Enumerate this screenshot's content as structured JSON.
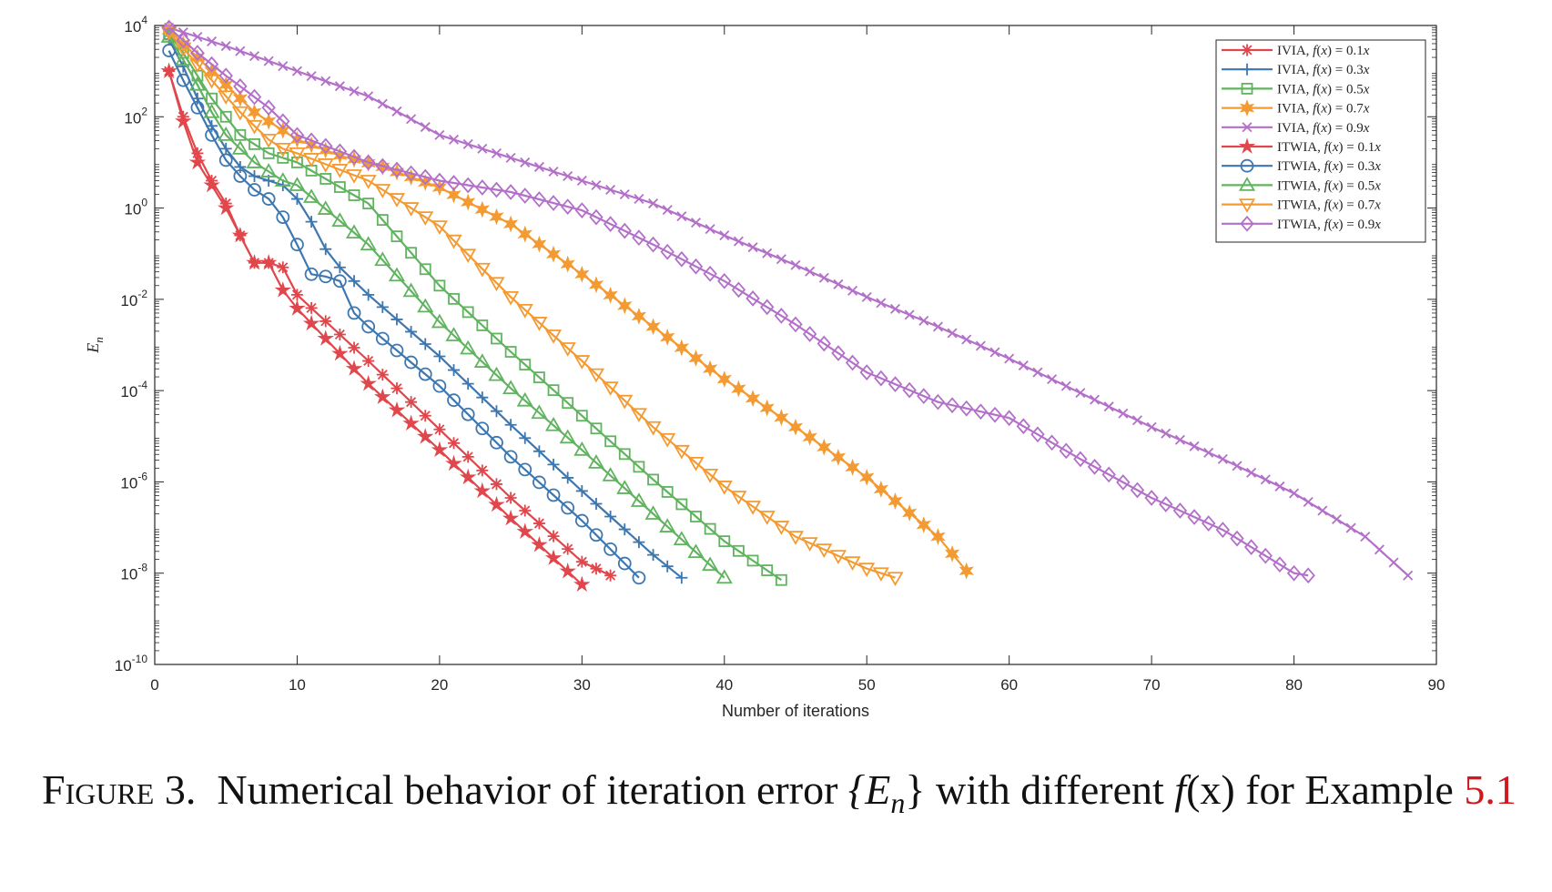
{
  "chart_data": {
    "type": "line",
    "xlabel": "Number of iterations",
    "ylabel": "E_n",
    "xlim": [
      0,
      90
    ],
    "ylim_log10": [
      -10,
      4
    ],
    "yscale": "log",
    "xticks": [
      "0",
      "10",
      "20",
      "30",
      "40",
      "50",
      "60",
      "70",
      "80",
      "90"
    ],
    "yticks": [
      {
        "base": "10",
        "exp": "4",
        "value": 4
      },
      {
        "base": "10",
        "exp": "2",
        "value": 2
      },
      {
        "base": "10",
        "exp": "0",
        "value": 0
      },
      {
        "base": "10",
        "exp": "-2",
        "value": -2
      },
      {
        "base": "10",
        "exp": "-4",
        "value": -4
      },
      {
        "base": "10",
        "exp": "-6",
        "value": -6
      },
      {
        "base": "10",
        "exp": "-8",
        "value": -8
      },
      {
        "base": "10",
        "exp": "-10",
        "value": -10
      }
    ],
    "legend_position": "top-right",
    "series": [
      {
        "name": "IVIA, f(x) = 0.1x",
        "color": "#e0474c",
        "marker": "asterisk",
        "n_end": 32,
        "log10_points": [
          [
            1,
            3.0
          ],
          [
            2,
            2.0
          ],
          [
            3,
            1.2
          ],
          [
            4,
            0.6
          ],
          [
            5,
            0.1
          ],
          [
            6,
            -0.6
          ],
          [
            7,
            -1.2
          ],
          [
            8,
            -1.2
          ],
          [
            9,
            -1.3
          ],
          [
            10,
            -1.9
          ],
          [
            15,
            -3.35
          ],
          [
            20,
            -4.85
          ],
          [
            25,
            -6.35
          ],
          [
            30,
            -7.75
          ],
          [
            32,
            -8.05
          ]
        ]
      },
      {
        "name": "IVIA, f(x) = 0.3x",
        "color": "#3d77b0",
        "marker": "plus",
        "n_end": 37,
        "log10_points": [
          [
            1,
            3.7
          ],
          [
            2,
            3.1
          ],
          [
            3,
            2.4
          ],
          [
            4,
            1.8
          ],
          [
            5,
            1.3
          ],
          [
            6,
            0.9
          ],
          [
            7,
            0.7
          ],
          [
            8,
            0.6
          ],
          [
            9,
            0.5
          ],
          [
            10,
            0.2
          ],
          [
            11,
            -0.3
          ],
          [
            12,
            -0.9
          ],
          [
            13,
            -1.3
          ],
          [
            14,
            -1.6
          ],
          [
            15,
            -1.9
          ],
          [
            20,
            -3.25
          ],
          [
            25,
            -4.75
          ],
          [
            30,
            -6.2
          ],
          [
            35,
            -7.6
          ],
          [
            37,
            -8.1
          ]
        ]
      },
      {
        "name": "IVIA, f(x) = 0.5x",
        "color": "#60b35f",
        "marker": "square",
        "n_end": 44,
        "log10_points": [
          [
            1,
            3.8
          ],
          [
            2,
            3.4
          ],
          [
            3,
            2.9
          ],
          [
            4,
            2.4
          ],
          [
            5,
            2.0
          ],
          [
            6,
            1.6
          ],
          [
            7,
            1.4
          ],
          [
            8,
            1.2
          ],
          [
            9,
            1.1
          ],
          [
            10,
            1.0
          ],
          [
            15,
            0.1
          ],
          [
            20,
            -1.7
          ],
          [
            25,
            -3.15
          ],
          [
            30,
            -4.55
          ],
          [
            35,
            -5.95
          ],
          [
            40,
            -7.3
          ],
          [
            44,
            -8.15
          ]
        ]
      },
      {
        "name": "IVIA, f(x) = 0.7x",
        "color": "#f39b32",
        "marker": "hexagram",
        "n_end": 57,
        "log10_points": [
          [
            1,
            3.9
          ],
          [
            2,
            3.6
          ],
          [
            3,
            3.3
          ],
          [
            4,
            3.0
          ],
          [
            5,
            2.7
          ],
          [
            6,
            2.4
          ],
          [
            7,
            2.1
          ],
          [
            8,
            1.9
          ],
          [
            9,
            1.7
          ],
          [
            10,
            1.5
          ],
          [
            13,
            1.15
          ],
          [
            16,
            0.9
          ],
          [
            20,
            0.45
          ],
          [
            25,
            -0.35
          ],
          [
            30,
            -1.45
          ],
          [
            35,
            -2.6
          ],
          [
            40,
            -3.75
          ],
          [
            45,
            -4.8
          ],
          [
            50,
            -5.9
          ],
          [
            55,
            -7.2
          ],
          [
            57,
            -7.95
          ]
        ]
      },
      {
        "name": "IVIA, f(x) = 0.9x",
        "color": "#b36fc9",
        "marker": "cross",
        "n_end": 88,
        "log10_points": [
          [
            1,
            3.95
          ],
          [
            5,
            3.55
          ],
          [
            10,
            3.0
          ],
          [
            15,
            2.45
          ],
          [
            18,
            1.95
          ],
          [
            20,
            1.6
          ],
          [
            25,
            1.1
          ],
          [
            30,
            0.6
          ],
          [
            35,
            0.1
          ],
          [
            40,
            -0.6
          ],
          [
            45,
            -1.25
          ],
          [
            50,
            -1.95
          ],
          [
            55,
            -2.6
          ],
          [
            60,
            -3.3
          ],
          [
            65,
            -4.05
          ],
          [
            70,
            -4.8
          ],
          [
            75,
            -5.5
          ],
          [
            80,
            -6.25
          ],
          [
            85,
            -7.2
          ],
          [
            88,
            -8.05
          ]
        ]
      },
      {
        "name": "ITWIA, f(x) = 0.1x",
        "color": "#e0474c",
        "marker": "star",
        "n_end": 30,
        "log10_points": [
          [
            1,
            3.0
          ],
          [
            2,
            1.9
          ],
          [
            3,
            1.0
          ],
          [
            4,
            0.5
          ],
          [
            5,
            0.0
          ],
          [
            6,
            -0.6
          ],
          [
            7,
            -1.2
          ],
          [
            8,
            -1.2
          ],
          [
            9,
            -1.8
          ],
          [
            10,
            -2.2
          ],
          [
            15,
            -3.85
          ],
          [
            20,
            -5.3
          ],
          [
            25,
            -6.8
          ],
          [
            30,
            -8.25
          ]
        ]
      },
      {
        "name": "ITWIA, f(x) = 0.3x",
        "color": "#3d77b0",
        "marker": "circle",
        "n_end": 34,
        "log10_points": [
          [
            1,
            3.45
          ],
          [
            2,
            2.8
          ],
          [
            3,
            2.2
          ],
          [
            4,
            1.6
          ],
          [
            5,
            1.05
          ],
          [
            6,
            0.7
          ],
          [
            7,
            0.4
          ],
          [
            8,
            0.2
          ],
          [
            9,
            -0.2
          ],
          [
            10,
            -0.8
          ],
          [
            11,
            -1.45
          ],
          [
            12,
            -1.5
          ],
          [
            13,
            -1.6
          ],
          [
            14,
            -2.3
          ],
          [
            15,
            -2.6
          ],
          [
            20,
            -3.9
          ],
          [
            25,
            -5.45
          ],
          [
            30,
            -6.85
          ],
          [
            34,
            -8.1
          ]
        ]
      },
      {
        "name": "ITWIA, f(x) = 0.5x",
        "color": "#60b35f",
        "marker": "triangle-up",
        "n_end": 40,
        "log10_points": [
          [
            1,
            3.75
          ],
          [
            2,
            3.25
          ],
          [
            3,
            2.7
          ],
          [
            4,
            2.1
          ],
          [
            5,
            1.6
          ],
          [
            6,
            1.3
          ],
          [
            7,
            1.0
          ],
          [
            8,
            0.8
          ],
          [
            9,
            0.6
          ],
          [
            10,
            0.5
          ],
          [
            15,
            -0.8
          ],
          [
            20,
            -2.5
          ],
          [
            25,
            -3.95
          ],
          [
            30,
            -5.3
          ],
          [
            35,
            -6.7
          ],
          [
            40,
            -8.1
          ]
        ]
      },
      {
        "name": "ITWIA, f(x) = 0.7x",
        "color": "#f39b32",
        "marker": "triangle-down",
        "n_end": 52,
        "log10_points": [
          [
            1,
            3.85
          ],
          [
            2,
            3.5
          ],
          [
            3,
            3.15
          ],
          [
            4,
            2.8
          ],
          [
            5,
            2.45
          ],
          [
            6,
            2.1
          ],
          [
            7,
            1.8
          ],
          [
            8,
            1.5
          ],
          [
            9,
            1.3
          ],
          [
            10,
            1.2
          ],
          [
            15,
            0.6
          ],
          [
            20,
            -0.4
          ],
          [
            25,
            -1.95
          ],
          [
            30,
            -3.35
          ],
          [
            35,
            -4.8
          ],
          [
            40,
            -6.1
          ],
          [
            45,
            -7.2
          ],
          [
            50,
            -7.9
          ],
          [
            52,
            -8.1
          ]
        ]
      },
      {
        "name": "ITWIA, f(x) = 0.9x",
        "color": "#b36fc9",
        "marker": "diamond",
        "n_end": 81,
        "log10_points": [
          [
            1,
            3.95
          ],
          [
            3,
            3.4
          ],
          [
            5,
            2.9
          ],
          [
            8,
            2.2
          ],
          [
            10,
            1.6
          ],
          [
            15,
            1.0
          ],
          [
            20,
            0.6
          ],
          [
            25,
            0.35
          ],
          [
            30,
            -0.05
          ],
          [
            35,
            -0.8
          ],
          [
            40,
            -1.6
          ],
          [
            45,
            -2.55
          ],
          [
            50,
            -3.6
          ],
          [
            55,
            -4.25
          ],
          [
            60,
            -4.6
          ],
          [
            65,
            -5.5
          ],
          [
            70,
            -6.35
          ],
          [
            75,
            -7.05
          ],
          [
            80,
            -8.0
          ],
          [
            81,
            -8.05
          ]
        ]
      }
    ]
  },
  "legend": {
    "items": [
      {
        "method": "IVIA",
        "coef": "0.1"
      },
      {
        "method": "IVIA",
        "coef": "0.3"
      },
      {
        "method": "IVIA",
        "coef": "0.5"
      },
      {
        "method": "IVIA",
        "coef": "0.7"
      },
      {
        "method": "IVIA",
        "coef": "0.9"
      },
      {
        "method": "ITWIA",
        "coef": "0.1"
      },
      {
        "method": "ITWIA",
        "coef": "0.3"
      },
      {
        "method": "ITWIA",
        "coef": "0.5"
      },
      {
        "method": "ITWIA",
        "coef": "0.7"
      },
      {
        "method": "ITWIA",
        "coef": "0.9"
      }
    ]
  },
  "caption": {
    "figure_word": "Figure",
    "figure_number": "3.",
    "text": "Numerical behavior of iteration error",
    "math_set": "{E",
    "math_sub": "n",
    "math_close": "}",
    "text2": "with different",
    "math_f": "f",
    "math_arg": "(x)",
    "text3": "for Example",
    "ref": "5.1"
  }
}
